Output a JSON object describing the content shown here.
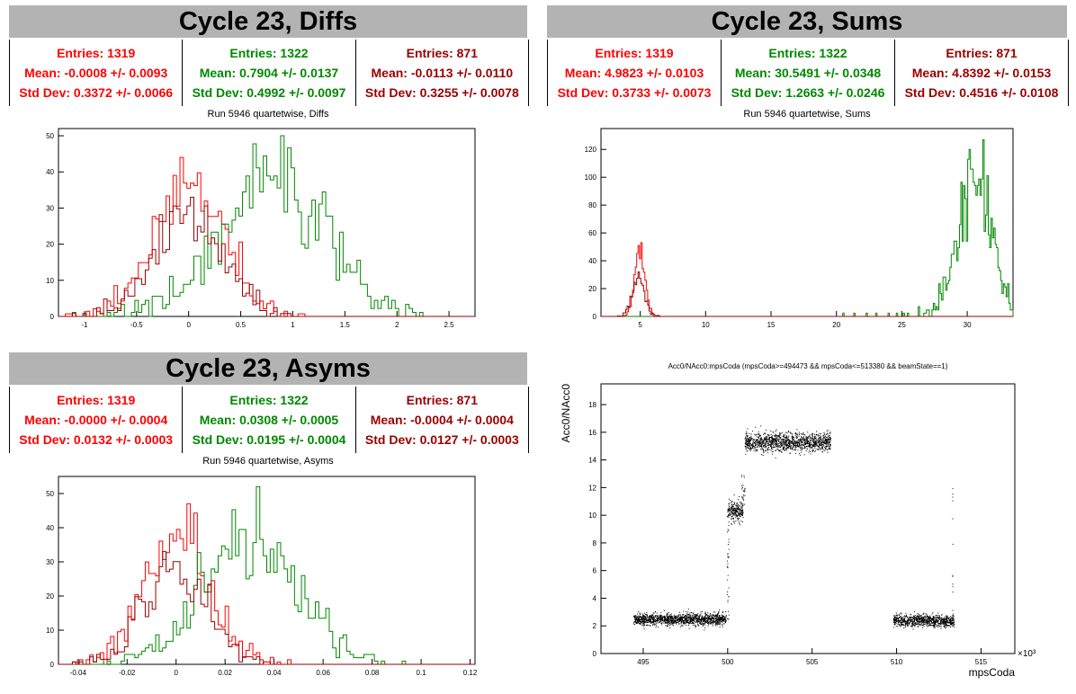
{
  "panels": [
    {
      "title": "Cycle 23, Diffs",
      "stats": [
        {
          "entries": "Entries: 1319",
          "mean": "Mean: -0.0008 +/- 0.0093",
          "std": "Std Dev: 0.3372 +/- 0.0066",
          "color": "#ff0000"
        },
        {
          "entries": "Entries: 1322",
          "mean": "Mean: 0.7904 +/- 0.0137",
          "std": "Std Dev: 0.4992 +/- 0.0097",
          "color": "#008800"
        },
        {
          "entries": "Entries: 871",
          "mean": "Mean: -0.0113 +/- 0.0110",
          "std": "Std Dev: 0.3255 +/- 0.0078",
          "color": "#990000"
        }
      ],
      "subtitle": "Run 5946 quartetwise, Diffs"
    },
    {
      "title": "Cycle 23, Sums",
      "stats": [
        {
          "entries": "Entries: 1319",
          "mean": "Mean: 4.9823 +/- 0.0103",
          "std": "Std Dev: 0.3733 +/- 0.0073",
          "color": "#ff0000"
        },
        {
          "entries": "Entries: 1322",
          "mean": "Mean: 30.5491 +/- 0.0348",
          "std": "Std Dev: 1.2663 +/- 0.0246",
          "color": "#008800"
        },
        {
          "entries": "Entries: 871",
          "mean": "Mean: 4.8392 +/- 0.0153",
          "std": "Std Dev: 0.4516 +/- 0.0108",
          "color": "#990000"
        }
      ],
      "subtitle": "Run 5946 quartetwise, Sums"
    },
    {
      "title": "Cycle 23, Asyms",
      "stats": [
        {
          "entries": "Entries: 1319",
          "mean": "Mean: -0.0000 +/- 0.0004",
          "std": "Std Dev: 0.0132 +/- 0.0003",
          "color": "#ff0000"
        },
        {
          "entries": "Entries: 1322",
          "mean": "Mean: 0.0308 +/- 0.0005",
          "std": "Std Dev: 0.0195 +/- 0.0004",
          "color": "#008800"
        },
        {
          "entries": "Entries: 871",
          "mean": "Mean: -0.0004 +/- 0.0004",
          "std": "Std Dev: 0.0127 +/- 0.0003",
          "color": "#990000"
        }
      ],
      "subtitle": "Run 5946 quartetwise, Asyms"
    }
  ],
  "chart_data": [
    {
      "type": "area",
      "name": "diffs-histogram",
      "xlim": [
        -1.25,
        2.75
      ],
      "ylim": [
        0,
        52
      ],
      "xticks": [
        -1,
        -0.5,
        0,
        0.5,
        1,
        1.5,
        2,
        2.5
      ],
      "xtick_labels": [
        "-1",
        "-0.5",
        "0",
        "0.5",
        "1",
        "1.5",
        "2",
        "2.5"
      ],
      "yticks": [
        0,
        10,
        20,
        30,
        40,
        50
      ],
      "series": [
        {
          "mean": -0.0008,
          "std": 0.3372,
          "entries": 1319,
          "peak": 44,
          "color": "#ff0000"
        },
        {
          "mean": 0.7904,
          "std": 0.4992,
          "entries": 1322,
          "peak": 50,
          "color": "#008800"
        },
        {
          "mean": -0.0113,
          "std": 0.3255,
          "entries": 871,
          "peak": 33,
          "color": "#990000"
        }
      ]
    },
    {
      "type": "area",
      "name": "sums-histogram",
      "xlim": [
        2,
        33.5
      ],
      "ylim": [
        0,
        135
      ],
      "xticks": [
        5,
        10,
        15,
        20,
        25,
        30
      ],
      "xtick_labels": [
        "5",
        "10",
        "15",
        "20",
        "25",
        "30"
      ],
      "yticks": [
        0,
        20,
        40,
        60,
        80,
        100,
        120
      ],
      "series": [
        {
          "mean": 4.9823,
          "std": 0.3733,
          "entries": 1319,
          "peak": 53,
          "color": "#ff0000"
        },
        {
          "mean": 30.5491,
          "std": 1.2663,
          "entries": 1322,
          "peak": 127,
          "color": "#008800"
        },
        {
          "mean": 4.8392,
          "std": 0.4516,
          "entries": 871,
          "peak": 32,
          "color": "#990000"
        }
      ]
    },
    {
      "type": "area",
      "name": "asyms-histogram",
      "xlim": [
        -0.048,
        0.122
      ],
      "ylim": [
        0,
        55
      ],
      "xticks": [
        -0.04,
        -0.02,
        0,
        0.02,
        0.04,
        0.06,
        0.08,
        0.1,
        0.12
      ],
      "xtick_labels": [
        "-0.04",
        "-0.02",
        "0",
        "0.02",
        "0.04",
        "0.06",
        "0.08",
        "0.1",
        "0.12"
      ],
      "yticks": [
        0,
        10,
        20,
        30,
        40,
        50
      ],
      "series": [
        {
          "mean": 0.0,
          "std": 0.0132,
          "entries": 1319,
          "peak": 47,
          "color": "#ff0000"
        },
        {
          "mean": 0.0308,
          "std": 0.0195,
          "entries": 1322,
          "peak": 52,
          "color": "#008800"
        },
        {
          "mean": -0.0004,
          "std": 0.0127,
          "entries": 871,
          "peak": 33,
          "color": "#990000"
        }
      ]
    },
    {
      "type": "scatter",
      "name": "acc0-vs-mpscoda",
      "title": "Acc0/NAcc0:mpsCoda (mpsCoda>=494473 && mpsCoda<=513380 && beamState==1)",
      "xlabel": "mpsCoda",
      "ylabel": "Acc0/NAcc0",
      "x_multiplier": "×10³",
      "xlim": [
        492.5,
        517
      ],
      "ylim": [
        0,
        19.5
      ],
      "xticks": [
        495,
        500,
        505,
        510,
        515
      ],
      "xtick_labels": [
        "495",
        "500",
        "505",
        "510",
        "515"
      ],
      "yticks": [
        0,
        2,
        4,
        6,
        8,
        10,
        12,
        14,
        16,
        18
      ],
      "ytick_labels": [
        "0",
        "2",
        "4",
        "6",
        "8",
        "10",
        "12",
        "14",
        "16",
        "18"
      ],
      "clusters": [
        {
          "x_range": [
            494.4,
            499.9
          ],
          "y_center": 2.5,
          "y_spread": 0.35
        },
        {
          "x_range": [
            500.0,
            500.9
          ],
          "y_center": 10.3,
          "y_spread": 0.6
        },
        {
          "x_range": [
            501.0,
            506.1
          ],
          "y_center": 15.3,
          "y_spread": 0.55
        },
        {
          "x_range": [
            509.8,
            513.4
          ],
          "y_center": 2.4,
          "y_spread": 0.35
        }
      ]
    }
  ]
}
